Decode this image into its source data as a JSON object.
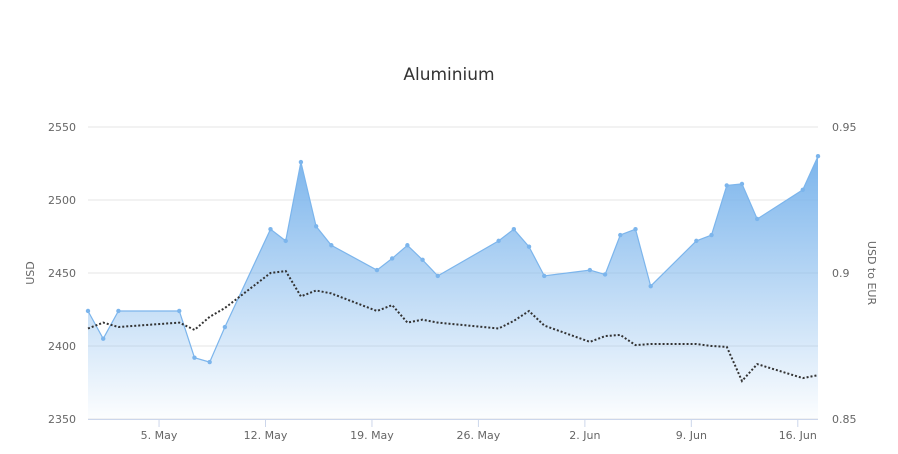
{
  "chart_data": {
    "type": "area",
    "title": "Aluminium",
    "ylabel": "USD",
    "y2label": "USD to EUR",
    "ylim": [
      2350,
      2550
    ],
    "y2lim": [
      0.85,
      0.95
    ],
    "yticks": [
      "2350",
      "2400",
      "2450",
      "2500",
      "2550"
    ],
    "y2ticks": [
      "0.85",
      "0.9",
      "0.95"
    ],
    "xlim": [
      "2025-04-30",
      "2025-06-17"
    ],
    "xticks": [
      {
        "date": "2025-05-05",
        "label": "5. May"
      },
      {
        "date": "2025-05-12",
        "label": "12. May"
      },
      {
        "date": "2025-05-19",
        "label": "19. May"
      },
      {
        "date": "2025-05-26",
        "label": "26. May"
      },
      {
        "date": "2025-06-02",
        "label": "2. Jun"
      },
      {
        "date": "2025-06-09",
        "label": "9. Jun"
      },
      {
        "date": "2025-06-16",
        "label": "16. Jun"
      }
    ],
    "grid": true,
    "colors": {
      "area": "#7cb5ec",
      "line": "#333333"
    },
    "x": [
      "2025-04-30",
      "2025-05-01",
      "2025-05-02",
      "2025-05-06",
      "2025-05-07",
      "2025-05-08",
      "2025-05-09",
      "2025-05-12",
      "2025-05-13",
      "2025-05-14",
      "2025-05-15",
      "2025-05-16",
      "2025-05-19",
      "2025-05-20",
      "2025-05-21",
      "2025-05-22",
      "2025-05-23",
      "2025-05-27",
      "2025-05-28",
      "2025-05-29",
      "2025-05-30",
      "2025-06-02",
      "2025-06-03",
      "2025-06-04",
      "2025-06-05",
      "2025-06-06",
      "2025-06-09",
      "2025-06-10",
      "2025-06-11",
      "2025-06-12",
      "2025-06-13",
      "2025-06-16",
      "2025-06-17"
    ],
    "series": [
      {
        "axis": "left",
        "style": "area",
        "values": [
          2424,
          2405,
          2424,
          2424,
          2392,
          2389,
          2413,
          2480,
          2472,
          2526,
          2482,
          2469,
          2452,
          2460,
          2469,
          2459,
          2448,
          2472,
          2480,
          2468,
          2448,
          2452,
          2449,
          2476,
          2480,
          2441,
          2472,
          2476,
          2510,
          2511,
          2487,
          2507,
          2530
        ]
      },
      {
        "axis": "right",
        "style": "dotted",
        "values": [
          0.881,
          0.883,
          0.8815,
          0.883,
          0.8805,
          0.885,
          0.888,
          0.9,
          0.9007,
          0.892,
          0.894,
          0.893,
          0.887,
          0.889,
          0.883,
          0.884,
          0.883,
          0.881,
          0.8836,
          0.887,
          0.882,
          0.8764,
          0.8784,
          0.8788,
          0.8753,
          0.8757,
          0.8757,
          0.875,
          0.8747,
          0.863,
          0.8688,
          0.864,
          0.865
        ]
      }
    ]
  }
}
